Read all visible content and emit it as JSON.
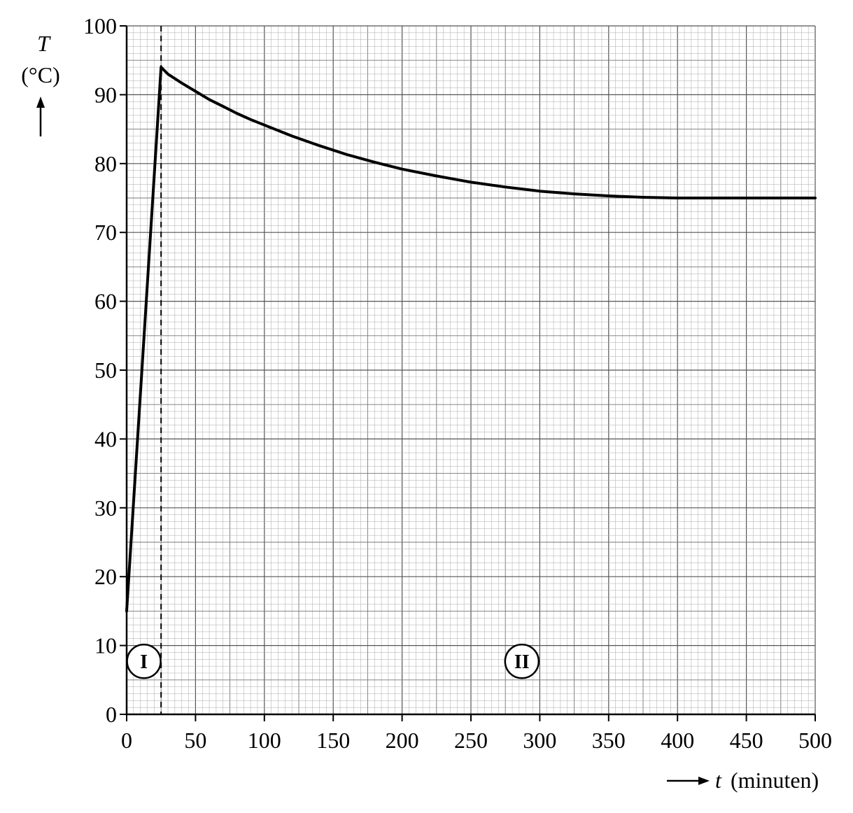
{
  "chart_data": {
    "type": "line",
    "title": "",
    "ylabel": {
      "symbol": "T",
      "unit": "(°C)"
    },
    "xlabel": {
      "symbol": "t",
      "unit": "(minuten)"
    },
    "xlim": [
      0,
      500
    ],
    "ylim": [
      0,
      100
    ],
    "x_ticks": [
      "0",
      "50",
      "100",
      "150",
      "200",
      "250",
      "300",
      "350",
      "400",
      "450",
      "500"
    ],
    "y_ticks": [
      "0",
      "10",
      "20",
      "30",
      "40",
      "50",
      "60",
      "70",
      "80",
      "90",
      "100"
    ],
    "grid": true,
    "grid_minor_step": {
      "x": 5,
      "y": 1
    },
    "grid_medium_step": {
      "x": 25,
      "y": 5
    },
    "grid_major_step": {
      "x": 50,
      "y": 10
    },
    "series": [
      {
        "x": [
          0,
          25,
          30,
          40,
          50,
          60,
          70,
          80,
          90,
          100,
          120,
          140,
          160,
          180,
          200,
          225,
          250,
          275,
          300,
          325,
          350,
          375,
          400,
          450,
          500
        ],
        "y": [
          15,
          94,
          93,
          91.7,
          90.5,
          89.3,
          88.3,
          87.3,
          86.4,
          85.6,
          84.0,
          82.6,
          81.3,
          80.2,
          79.2,
          78.2,
          77.3,
          76.6,
          76.0,
          75.6,
          75.3,
          75.1,
          75.0,
          75.0,
          75.0
        ]
      }
    ],
    "vertical_marker": {
      "x": 25,
      "style": "dashed"
    },
    "regions": [
      {
        "label": "I",
        "x": 12.5,
        "y": 7.7
      },
      {
        "label": "II",
        "x": 287,
        "y": 7.7
      }
    ]
  }
}
